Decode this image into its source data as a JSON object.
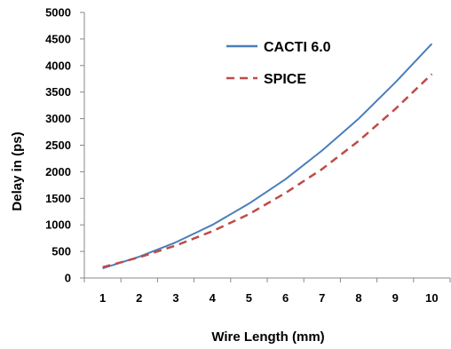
{
  "chart_data": {
    "type": "line",
    "x": [
      1,
      2,
      3,
      4,
      5,
      6,
      7,
      8,
      9,
      10
    ],
    "series": [
      {
        "name": "CACTI 6.0",
        "color": "#4a7ebb",
        "style": "solid",
        "values": [
          180,
          400,
          670,
          1000,
          1400,
          1860,
          2400,
          3000,
          3680,
          4410
        ]
      },
      {
        "name": "SPICE",
        "color": "#be4b48",
        "style": "dashed",
        "values": [
          200,
          390,
          610,
          880,
          1200,
          1600,
          2050,
          2580,
          3180,
          3840
        ]
      }
    ],
    "xlabel": "Wire Length (mm)",
    "ylabel": "Delay in  (ps)",
    "xticks": [
      "1",
      "2",
      "3",
      "4",
      "5",
      "6",
      "7",
      "8",
      "9",
      "10"
    ],
    "yticks": [
      "0",
      "500",
      "1000",
      "1500",
      "2000",
      "2500",
      "3000",
      "3500",
      "4000",
      "4500",
      "5000"
    ],
    "ylim": [
      0,
      5000
    ],
    "grid": false,
    "legend_position": "top-center"
  }
}
